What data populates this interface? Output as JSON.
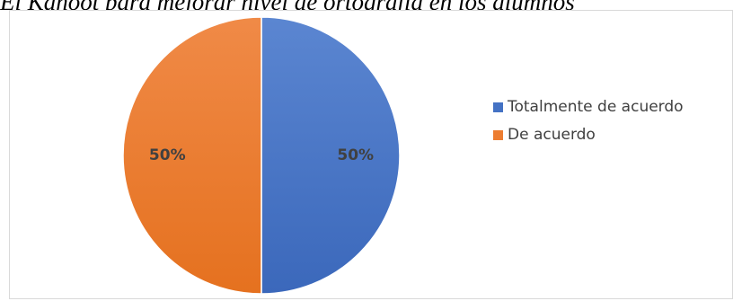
{
  "chart_data": {
    "type": "pie",
    "title": "El Kahoot para mejorar nivel de ortografía en los alumnos",
    "slices": [
      {
        "label": "Totalmente de acuerdo",
        "value": 50,
        "data_label": "50%",
        "color": "#4472c4"
      },
      {
        "label": "De acuerdo",
        "value": 50,
        "data_label": "50%",
        "color": "#ed7d31"
      }
    ],
    "legend_position": "right"
  }
}
